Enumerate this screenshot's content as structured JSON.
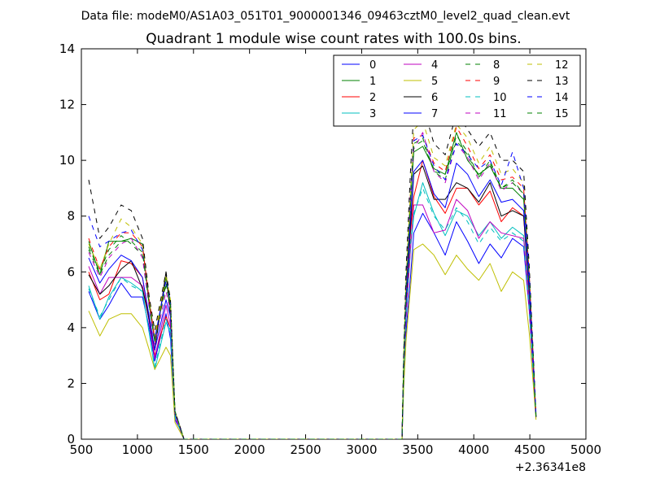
{
  "header": {
    "data_file": "Data file: modeM0/AS1A03_051T01_9000001346_09463cztM0_level2_quad_clean.evt"
  },
  "chart_data": {
    "type": "line",
    "title": "Quadrant 1 module wise count rates with 100.0s bins.",
    "xlabel": "",
    "ylabel": "",
    "x_offset_label": "+2.36341e8",
    "xlim": [
      500,
      5000
    ],
    "ylim": [
      0,
      14
    ],
    "xticks": [
      "500",
      "1000",
      "1500",
      "2000",
      "2500",
      "3000",
      "3500",
      "4000",
      "4500",
      "5000"
    ],
    "yticks": [
      "0",
      "2",
      "4",
      "6",
      "8",
      "10",
      "12",
      "14"
    ],
    "grid": false,
    "legend_position": "top-right",
    "x": [
      565,
      665,
      745,
      855,
      945,
      1045,
      1105,
      1155,
      1255,
      1295,
      1335,
      1375,
      1415,
      1445,
      1495,
      3360,
      3375,
      3395,
      3435,
      3465,
      3545,
      3645,
      3745,
      3845,
      3945,
      4045,
      4145,
      4245,
      4345,
      4445,
      4495,
      4555
    ],
    "series": [
      {
        "name": "0",
        "color": "#0000ff",
        "dash": "solid",
        "values": [
          5.3,
          4.3,
          4.8,
          5.6,
          5.1,
          5.1,
          4.0,
          2.8,
          4.5,
          3.6,
          0.7,
          0.4,
          0,
          0,
          0,
          0,
          2.0,
          3.8,
          5.8,
          7.4,
          8.1,
          7.4,
          6.6,
          7.8,
          7.1,
          6.3,
          7.0,
          6.5,
          7.2,
          6.9,
          4.6,
          0.8
        ]
      },
      {
        "name": "1",
        "color": "#008000",
        "dash": "solid",
        "values": [
          7.1,
          5.9,
          7.1,
          7.1,
          7.2,
          7.0,
          4.8,
          3.5,
          5.8,
          4.8,
          1.0,
          0.5,
          0,
          0,
          0,
          0,
          2.8,
          5.3,
          8.4,
          10.3,
          10.5,
          9.7,
          9.5,
          11.0,
          10.0,
          9.5,
          9.8,
          9.0,
          9.0,
          8.6,
          5.8,
          0.8
        ]
      },
      {
        "name": "2",
        "color": "#ff0000",
        "dash": "solid",
        "values": [
          6.0,
          5.0,
          5.2,
          6.4,
          6.3,
          5.8,
          4.2,
          3.0,
          4.4,
          4.0,
          0.9,
          0.5,
          0,
          0,
          0,
          0,
          2.3,
          4.7,
          7.4,
          8.7,
          10.0,
          8.7,
          8.1,
          9.0,
          9.0,
          8.4,
          8.9,
          7.8,
          8.3,
          8.0,
          5.1,
          0.8
        ]
      },
      {
        "name": "3",
        "color": "#00bfbf",
        "dash": "solid",
        "values": [
          5.5,
          4.3,
          5.1,
          5.8,
          5.6,
          5.3,
          3.8,
          2.5,
          4.2,
          3.8,
          0.8,
          0.4,
          0,
          0,
          0,
          0,
          2.2,
          4.3,
          6.8,
          8.0,
          9.2,
          8.1,
          7.3,
          8.2,
          8.0,
          7.3,
          7.8,
          7.2,
          7.6,
          7.3,
          4.8,
          0.8
        ]
      },
      {
        "name": "4",
        "color": "#bf00bf",
        "dash": "solid",
        "values": [
          6.2,
          5.2,
          5.8,
          5.8,
          5.8,
          5.5,
          4.2,
          2.9,
          4.8,
          4.1,
          0.8,
          0.4,
          0,
          0,
          0,
          0,
          2.2,
          4.3,
          6.8,
          8.4,
          8.4,
          7.4,
          7.5,
          8.6,
          8.2,
          7.2,
          7.8,
          7.4,
          7.3,
          7.2,
          4.7,
          0.8
        ]
      },
      {
        "name": "5",
        "color": "#bfbf00",
        "dash": "solid",
        "values": [
          4.6,
          3.7,
          4.3,
          4.5,
          4.5,
          4.0,
          3.2,
          2.5,
          3.3,
          3.0,
          0.6,
          0.3,
          0,
          0,
          0,
          0,
          1.8,
          3.5,
          5.4,
          6.8,
          7.0,
          6.6,
          5.9,
          6.6,
          6.1,
          5.7,
          6.3,
          5.3,
          6.0,
          5.7,
          3.8,
          0.7
        ]
      },
      {
        "name": "6",
        "color": "#000000",
        "dash": "solid",
        "values": [
          5.9,
          5.2,
          5.5,
          6.1,
          6.4,
          5.4,
          4.3,
          3.2,
          6.0,
          4.4,
          0.9,
          0.5,
          0,
          0,
          0,
          0,
          2.5,
          4.8,
          7.6,
          9.5,
          9.8,
          8.6,
          8.6,
          9.2,
          9.0,
          8.5,
          9.2,
          8.0,
          8.2,
          8.0,
          5.3,
          0.8
        ]
      },
      {
        "name": "7",
        "color": "#0000ff",
        "dash": "solid",
        "values": [
          6.5,
          5.6,
          6.1,
          6.6,
          6.4,
          5.8,
          4.4,
          3.2,
          5.0,
          4.4,
          0.9,
          0.5,
          0,
          0,
          0,
          0,
          2.6,
          5.0,
          7.9,
          9.6,
          10.0,
          8.8,
          8.3,
          9.9,
          9.5,
          8.7,
          9.3,
          8.5,
          8.6,
          8.2,
          5.4,
          0.8
        ]
      },
      {
        "name": "8",
        "color": "#008000",
        "dash": "dashed",
        "values": [
          6.9,
          6.0,
          6.8,
          7.3,
          7.0,
          6.6,
          4.9,
          3.6,
          5.5,
          4.8,
          1.0,
          0.5,
          0,
          0,
          0,
          0,
          2.8,
          5.4,
          8.6,
          10.6,
          10.8,
          9.6,
          9.3,
          10.9,
          10.3,
          9.4,
          10.0,
          9.0,
          9.3,
          8.8,
          5.8,
          0.8
        ]
      },
      {
        "name": "9",
        "color": "#ff0000",
        "dash": "dashed",
        "values": [
          7.2,
          6.1,
          6.9,
          7.4,
          7.4,
          6.9,
          5.0,
          3.6,
          5.6,
          4.9,
          1.0,
          0.5,
          0,
          0,
          0,
          0,
          2.9,
          5.5,
          8.8,
          10.8,
          10.9,
          9.9,
          9.6,
          11.2,
          10.5,
          9.7,
          10.2,
          9.3,
          9.4,
          9.0,
          5.9,
          0.8
        ]
      },
      {
        "name": "10",
        "color": "#00bfbf",
        "dash": "dashed",
        "values": [
          5.4,
          4.4,
          5.0,
          5.8,
          5.5,
          5.3,
          3.8,
          2.6,
          4.3,
          3.9,
          0.8,
          0.4,
          0,
          0,
          0,
          0,
          2.2,
          4.4,
          7.0,
          8.1,
          9.0,
          8.0,
          7.5,
          8.3,
          7.8,
          7.0,
          7.6,
          7.1,
          7.4,
          7.1,
          4.7,
          0.8
        ]
      },
      {
        "name": "11",
        "color": "#bf00bf",
        "dash": "dashed",
        "values": [
          6.7,
          5.8,
          6.5,
          7.0,
          7.2,
          6.5,
          4.7,
          3.4,
          5.3,
          4.6,
          0.9,
          0.5,
          0,
          0,
          0,
          0,
          2.7,
          5.2,
          8.4,
          10.4,
          11.0,
          9.6,
          9.2,
          10.6,
          10.1,
          9.3,
          9.9,
          8.9,
          9.2,
          8.8,
          5.7,
          0.8
        ]
      },
      {
        "name": "12",
        "color": "#bfbf00",
        "dash": "dashed",
        "values": [
          7.0,
          6.1,
          7.0,
          7.9,
          7.6,
          7.0,
          5.0,
          3.7,
          5.9,
          5.0,
          1.0,
          0.5,
          0,
          0,
          0,
          0,
          2.9,
          5.6,
          8.9,
          11.1,
          11.4,
          10.1,
          9.8,
          11.3,
          10.8,
          9.9,
          10.5,
          9.5,
          9.7,
          9.2,
          6.0,
          0.8
        ]
      },
      {
        "name": "13",
        "color": "#000000",
        "dash": "dashed",
        "values": [
          9.3,
          7.2,
          7.6,
          8.4,
          8.2,
          7.2,
          5.1,
          3.9,
          6.0,
          5.0,
          1.0,
          0.5,
          0,
          0,
          0,
          0,
          3.1,
          6.0,
          9.6,
          11.8,
          12.0,
          10.6,
          10.2,
          11.7,
          11.1,
          10.5,
          11.0,
          10.0,
          10.0,
          9.6,
          6.2,
          0.9
        ]
      },
      {
        "name": "14",
        "color": "#0000ff",
        "dash": "dashed",
        "values": [
          8.0,
          6.9,
          7.1,
          7.4,
          7.5,
          6.8,
          4.8,
          3.6,
          5.7,
          4.9,
          1.0,
          0.5,
          0,
          0,
          0,
          0,
          2.8,
          5.4,
          8.7,
          10.7,
          10.9,
          9.8,
          9.3,
          10.6,
          10.2,
          9.7,
          10.0,
          9.1,
          10.3,
          9.0,
          5.9,
          0.8
        ]
      },
      {
        "name": "15",
        "color": "#008000",
        "dash": "dashed",
        "values": [
          6.8,
          5.9,
          6.6,
          7.1,
          7.1,
          6.7,
          4.8,
          3.5,
          5.6,
          4.8,
          1.0,
          0.5,
          0,
          0,
          0,
          0,
          2.8,
          5.4,
          8.5,
          10.5,
          10.7,
          9.6,
          9.5,
          10.7,
          10.2,
          9.4,
          9.9,
          9.0,
          9.2,
          8.8,
          5.8,
          0.8
        ]
      }
    ]
  }
}
